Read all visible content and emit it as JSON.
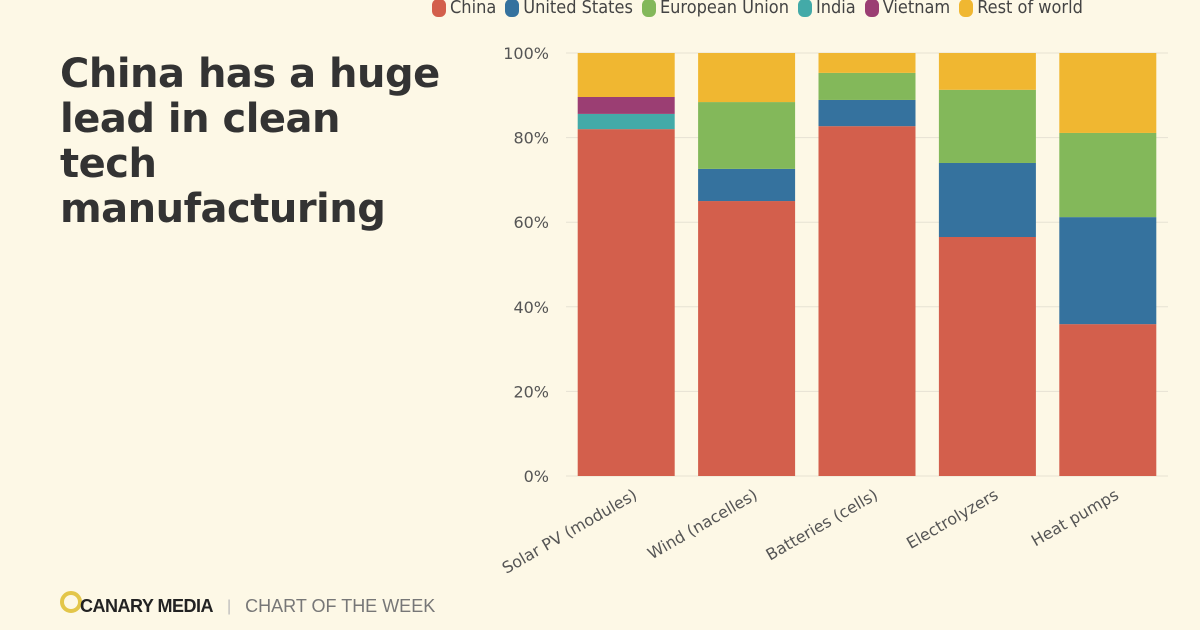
{
  "title": "China has a huge lead in clean tech manufacturing",
  "footer": {
    "brand": "CANARY MEDIA",
    "separator": "|",
    "section": "CHART OF THE WEEK"
  },
  "chart_data": {
    "type": "bar",
    "stacked": true,
    "categories": [
      "Solar PV (modules)",
      "Wind (nacelles)",
      "Batteries (cells)",
      "Electrolyzers",
      "Heat pumps"
    ],
    "series": [
      {
        "name": "China",
        "color": "#d35f4c",
        "values": [
          82.0,
          65.0,
          82.7,
          56.5,
          35.9
        ]
      },
      {
        "name": "United States",
        "color": "#35729e",
        "values": [
          0,
          7.6,
          6.2,
          17.5,
          25.3
        ]
      },
      {
        "name": "European Union",
        "color": "#83b85a",
        "values": [
          0,
          15.8,
          6.4,
          17.3,
          19.9
        ]
      },
      {
        "name": "India",
        "color": "#43aaa8",
        "values": [
          3.6,
          0,
          0,
          0,
          0
        ]
      },
      {
        "name": "Vietnam",
        "color": "#9b3e73",
        "values": [
          4.0,
          0,
          0,
          0,
          0
        ]
      },
      {
        "name": "Rest of world",
        "color": "#f0b731",
        "values": [
          10.4,
          11.6,
          4.7,
          8.7,
          18.9
        ]
      }
    ],
    "yticks": [
      "0%",
      "20%",
      "40%",
      "60%",
      "80%",
      "100%"
    ],
    "ylim": [
      0,
      100
    ],
    "grid": true,
    "legend_position": "top"
  }
}
